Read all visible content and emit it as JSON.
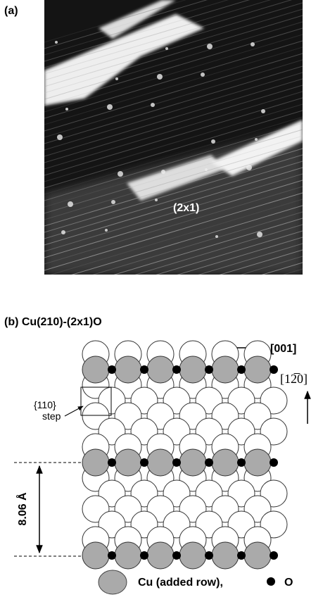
{
  "panel_a": {
    "label": "(a)",
    "annotation": "(2x1)"
  },
  "panel_b": {
    "title": "(b) Cu(210)-(2x1)O",
    "direction_horizontal": "[001]",
    "direction_vertical": "[12̅0]",
    "step_label": [
      "{110}",
      "step"
    ],
    "spacing": "8.06 Å",
    "legend": [
      "Cu (added row),",
      "O"
    ]
  }
}
